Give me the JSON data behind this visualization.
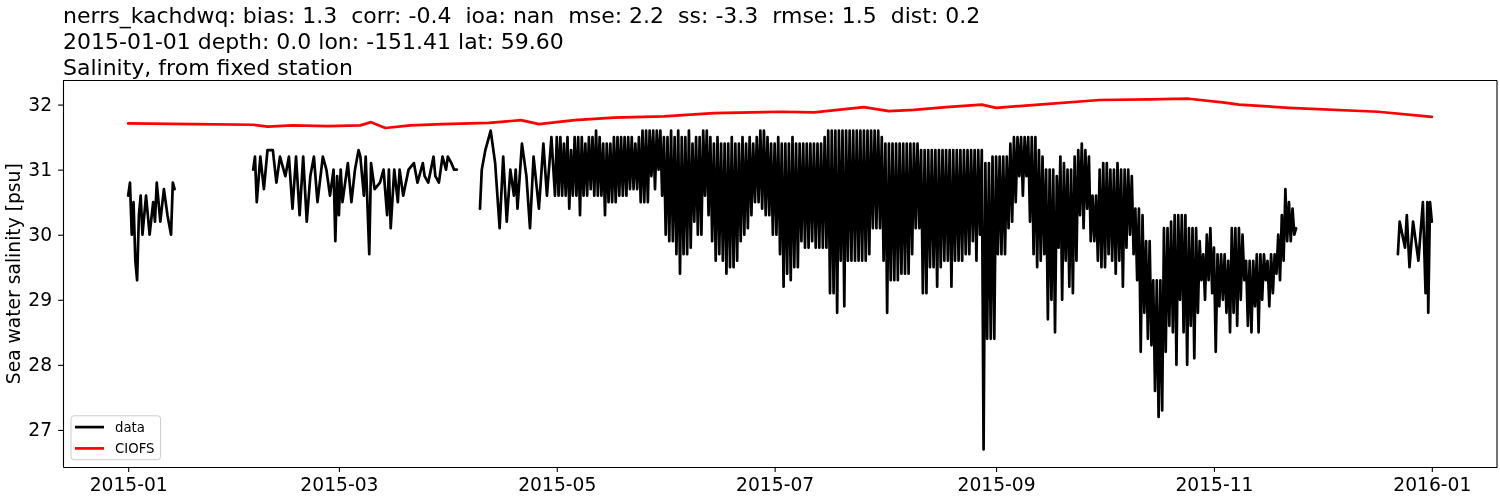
{
  "chart_data": {
    "type": "line",
    "title": "nerrs_kachdwq: bias: 1.3  corr: -0.4  ioa: nan  mse: 2.2  ss: -3.3  rmse: 1.5  dist: 0.2\n2015-01-01 depth: 0.0 lon: -151.41 lat: 59.60\nSalinity, from fixed station",
    "ylabel": "Sea water salinity [psu]",
    "xlim": [
      "2014-12-13T18:00",
      "2016-01-19T06:00"
    ],
    "xticks": [
      {
        "value": "2015-01-01",
        "label": "2015-01"
      },
      {
        "value": "2015-03-01",
        "label": "2015-03"
      },
      {
        "value": "2015-05-01",
        "label": "2015-05"
      },
      {
        "value": "2015-07-01",
        "label": "2015-07"
      },
      {
        "value": "2015-09-01",
        "label": "2015-09"
      },
      {
        "value": "2015-11-01",
        "label": "2015-11"
      },
      {
        "value": "2016-01-01",
        "label": "2016-01"
      }
    ],
    "ylim": [
      26.43,
      32.37
    ],
    "yticks": [
      27,
      28,
      29,
      30,
      31,
      32
    ],
    "legend": "bottom left",
    "series": [
      {
        "name": "data",
        "color": "#000000",
        "x": [
          "2015-01-01",
          "2015-01-01T12:00",
          "2015-01-02",
          "2015-01-02T12:00",
          "2015-01-03",
          "2015-01-03T12:00",
          "2015-01-04",
          "2015-01-04T12:00",
          "2015-01-05",
          "2015-01-06",
          "2015-01-07",
          "2015-01-08",
          "2015-01-08T12:00",
          "2015-01-09",
          "2015-01-10",
          "2015-01-11",
          "2015-01-12",
          "2015-01-13",
          "2015-01-13T12:00",
          "2015-01-14",
          "2015-01-25",
          "2015-02-05",
          "2015-02-05T12:00",
          "2015-02-06",
          "2015-02-07",
          "2015-02-08",
          "2015-02-09",
          "2015-02-10T12:00",
          "2015-02-11T12:00",
          "2015-02-12T12:00",
          "2015-02-14",
          "2015-02-15",
          "2015-02-16",
          "2015-02-17",
          "2015-02-18",
          "2015-02-19",
          "2015-02-20",
          "2015-02-21",
          "2015-02-22",
          "2015-02-23",
          "2015-02-24T12:00",
          "2015-02-25T12:00",
          "2015-02-26T12:00",
          "2015-02-27T12:00",
          "2015-02-28",
          "2015-02-28T12:00",
          "2015-03-01",
          "2015-03-01T12:00",
          "2015-03-02",
          "2015-03-03T12:00",
          "2015-03-04T12:00",
          "2015-03-05T12:00",
          "2015-03-06T12:00",
          "2015-03-07",
          "2015-03-08",
          "2015-03-08T12:00",
          "2015-03-09T12:00",
          "2015-03-10",
          "2015-03-11",
          "2015-03-12T12:00",
          "2015-03-13T12:00",
          "2015-03-14T12:00",
          "2015-03-15",
          "2015-03-15T12:00",
          "2015-03-16T12:00",
          "2015-03-17T12:00",
          "2015-03-18",
          "2015-03-19",
          "2015-03-20T12:00",
          "2015-03-22",
          "2015-03-23",
          "2015-03-24T12:00",
          "2015-03-25",
          "2015-03-26",
          "2015-03-27T12:00",
          "2015-03-28",
          "2015-03-29",
          "2015-03-30",
          "2015-03-31",
          "2015-03-31T12:00",
          "2015-04-01T12:00",
          "2015-04-02T06:00",
          "2015-04-03",
          "2015-04-06",
          "2015-04-09T12:00",
          "2015-04-10",
          "2015-04-11",
          "2015-04-12T12:00",
          "2015-04-13T18:00",
          "2015-04-15",
          "2015-04-16",
          "2015-04-17",
          "2015-04-18",
          "2015-04-19",
          "2015-04-19T12:00",
          "2015-04-20",
          "2015-04-21T06:00",
          "2015-04-22T12:00",
          "2015-04-23T12:00",
          "2015-04-24T12:00",
          "2015-04-26",
          "2015-04-27T06:00",
          "2015-04-28T06:00",
          "2015-04-29T12:00",
          "2015-04-30T12:00",
          "2015-05-01",
          "2015-05-01T12:00",
          "2015-05-02",
          "2015-05-02T12:00",
          "2015-05-03",
          "2015-05-03T12:00",
          "2015-05-04",
          "2015-05-04T12:00",
          "2015-05-05",
          "2015-05-05T12:00",
          "2015-05-06",
          "2015-05-06T12:00",
          "2015-05-07",
          "2015-05-07T12:00",
          "2015-05-08",
          "2015-05-08T12:00",
          "2015-05-09",
          "2015-05-09T12:00",
          "2015-05-10",
          "2015-05-10T12:00",
          "2015-05-11",
          "2015-05-11T12:00",
          "2015-05-12",
          "2015-05-12T12:00",
          "2015-05-13",
          "2015-05-13T12:00",
          "2015-05-14",
          "2015-05-14T12:00",
          "2015-05-15",
          "2015-05-15T12:00",
          "2015-05-16",
          "2015-05-16T12:00",
          "2015-05-17",
          "2015-05-17T12:00",
          "2015-05-18",
          "2015-05-18T12:00",
          "2015-05-19",
          "2015-05-19T12:00",
          "2015-05-20",
          "2015-05-20T12:00",
          "2015-05-21",
          "2015-05-21T12:00",
          "2015-05-22",
          "2015-05-22T12:00",
          "2015-05-23",
          "2015-05-23T12:00",
          "2015-05-24",
          "2015-05-24T12:00",
          "2015-05-25",
          "2015-05-25T12:00",
          "2015-05-26",
          "2015-05-26T12:00",
          "2015-05-27",
          "2015-05-27T12:00",
          "2015-05-28",
          "2015-05-28T12:00",
          "2015-05-29",
          "2015-05-29T12:00",
          "2015-05-30",
          "2015-05-30T12:00",
          "2015-05-31",
          "2015-05-31T12:00",
          "2015-06-01",
          "2015-06-01T12:00",
          "2015-06-02",
          "2015-06-02T12:00",
          "2015-06-03",
          "2015-06-03T12:00",
          "2015-06-04",
          "2015-06-04T12:00",
          "2015-06-05",
          "2015-06-05T12:00",
          "2015-06-06",
          "2015-06-06T12:00",
          "2015-06-07",
          "2015-06-07T12:00",
          "2015-06-08",
          "2015-06-08T12:00",
          "2015-06-09",
          "2015-06-09T12:00",
          "2015-06-10",
          "2015-06-10T12:00",
          "2015-06-11",
          "2015-06-11T12:00",
          "2015-06-12",
          "2015-06-12T12:00",
          "2015-06-13",
          "2015-06-13T12:00",
          "2015-06-14",
          "2015-06-14T12:00",
          "2015-06-15",
          "2015-06-15T12:00",
          "2015-06-16",
          "2015-06-16T12:00",
          "2015-06-17",
          "2015-06-17T12:00",
          "2015-06-18",
          "2015-06-18T12:00",
          "2015-06-19",
          "2015-06-19T12:00",
          "2015-06-20",
          "2015-06-20T12:00",
          "2015-06-21",
          "2015-06-21T12:00",
          "2015-06-22",
          "2015-06-22T12:00",
          "2015-06-23",
          "2015-06-23T12:00",
          "2015-06-24",
          "2015-06-24T12:00",
          "2015-06-25",
          "2015-06-25T12:00",
          "2015-06-26",
          "2015-06-26T12:00",
          "2015-06-27",
          "2015-06-27T12:00",
          "2015-06-28",
          "2015-06-28T12:00",
          "2015-06-29",
          "2015-06-29T12:00",
          "2015-06-30",
          "2015-06-30T12:00",
          "2015-07-01",
          "2015-07-01T12:00",
          "2015-07-02",
          "2015-07-02T12:00",
          "2015-07-03",
          "2015-07-03T12:00",
          "2015-07-04",
          "2015-07-04T12:00",
          "2015-07-05",
          "2015-07-05T12:00",
          "2015-07-06",
          "2015-07-06T12:00",
          "2015-07-07",
          "2015-07-07T12:00",
          "2015-07-08",
          "2015-07-08T12:00",
          "2015-07-09",
          "2015-07-09T12:00",
          "2015-07-10",
          "2015-07-10T12:00",
          "2015-07-11",
          "2015-07-11T12:00",
          "2015-07-12",
          "2015-07-12T12:00",
          "2015-07-13",
          "2015-07-13T12:00",
          "2015-07-14",
          "2015-07-14T12:00",
          "2015-07-15",
          "2015-07-15T12:00",
          "2015-07-16",
          "2015-07-16T12:00",
          "2015-07-17",
          "2015-07-17T12:00",
          "2015-07-18",
          "2015-07-18T12:00",
          "2015-07-19",
          "2015-07-19T12:00",
          "2015-07-20",
          "2015-07-20T12:00",
          "2015-07-21",
          "2015-07-21T12:00",
          "2015-07-22",
          "2015-07-22T12:00",
          "2015-07-23",
          "2015-07-23T12:00",
          "2015-07-24",
          "2015-07-24T12:00",
          "2015-07-25",
          "2015-07-25T12:00",
          "2015-07-26",
          "2015-07-26T12:00",
          "2015-07-27",
          "2015-07-27T12:00",
          "2015-07-28",
          "2015-07-28T12:00",
          "2015-07-29",
          "2015-07-29T12:00",
          "2015-07-30",
          "2015-07-30T12:00",
          "2015-07-31",
          "2015-07-31T12:00",
          "2015-08-01",
          "2015-08-01T12:00",
          "2015-08-02",
          "2015-08-02T12:00",
          "2015-08-03",
          "2015-08-03T12:00",
          "2015-08-04",
          "2015-08-04T12:00",
          "2015-08-05",
          "2015-08-05T12:00",
          "2015-08-06",
          "2015-08-06T12:00",
          "2015-08-07",
          "2015-08-07T12:00",
          "2015-08-08",
          "2015-08-08T12:00",
          "2015-08-09",
          "2015-08-09T12:00",
          "2015-08-10",
          "2015-08-10T12:00",
          "2015-08-11",
          "2015-08-11T12:00",
          "2015-08-12",
          "2015-08-12T12:00",
          "2015-08-13",
          "2015-08-13T12:00",
          "2015-08-14",
          "2015-08-14T12:00",
          "2015-08-15",
          "2015-08-15T12:00",
          "2015-08-16",
          "2015-08-16T12:00",
          "2015-08-17",
          "2015-08-17T12:00",
          "2015-08-18",
          "2015-08-18T12:00",
          "2015-08-19",
          "2015-08-19T12:00",
          "2015-08-20",
          "2015-08-20T12:00",
          "2015-08-21",
          "2015-08-21T12:00",
          "2015-08-22",
          "2015-08-22T12:00",
          "2015-08-23",
          "2015-08-23T12:00",
          "2015-08-24",
          "2015-08-24T12:00",
          "2015-08-25",
          "2015-08-25T12:00",
          "2015-08-26",
          "2015-08-26T12:00",
          "2015-08-27",
          "2015-08-27T12:00",
          "2015-08-28",
          "2015-08-28T12:00",
          "2015-08-29",
          "2015-08-29T12:00",
          "2015-08-30",
          "2015-08-30T12:00",
          "2015-08-31",
          "2015-08-31T12:00",
          "2015-09-01",
          "2015-09-01T12:00",
          "2015-09-02",
          "2015-09-02T12:00",
          "2015-09-03",
          "2015-09-03T12:00",
          "2015-09-04",
          "2015-09-04T12:00",
          "2015-09-05",
          "2015-09-05T12:00",
          "2015-09-06",
          "2015-09-06T12:00",
          "2015-09-07",
          "2015-09-07T12:00",
          "2015-09-08",
          "2015-09-08T12:00",
          "2015-09-09",
          "2015-09-09T12:00",
          "2015-09-10",
          "2015-09-10T12:00",
          "2015-09-11",
          "2015-09-11T12:00",
          "2015-09-12",
          "2015-09-12T12:00",
          "2015-09-13",
          "2015-09-13T12:00",
          "2015-09-14",
          "2015-09-14T12:00",
          "2015-09-15",
          "2015-09-15T12:00",
          "2015-09-16",
          "2015-09-16T12:00",
          "2015-09-17",
          "2015-09-17T12:00",
          "2015-09-18",
          "2015-09-18T12:00",
          "2015-09-19",
          "2015-09-19T12:00",
          "2015-09-20",
          "2015-09-20T12:00",
          "2015-09-21",
          "2015-09-21T12:00",
          "2015-09-22",
          "2015-09-22T12:00",
          "2015-09-23",
          "2015-09-23T12:00",
          "2015-09-24",
          "2015-09-24T12:00",
          "2015-09-25",
          "2015-09-25T12:00",
          "2015-09-26",
          "2015-09-26T12:00",
          "2015-09-27",
          "2015-09-27T12:00",
          "2015-09-28",
          "2015-09-28T12:00",
          "2015-09-29",
          "2015-09-29T12:00",
          "2015-09-30",
          "2015-09-30T12:00",
          "2015-10-01",
          "2015-10-01T12:00",
          "2015-10-02",
          "2015-10-02T12:00",
          "2015-10-03",
          "2015-10-03T12:00",
          "2015-10-04",
          "2015-10-04T12:00",
          "2015-10-05",
          "2015-10-05T12:00",
          "2015-10-06",
          "2015-10-06T12:00",
          "2015-10-07",
          "2015-10-07T12:00",
          "2015-10-08",
          "2015-10-08T12:00",
          "2015-10-09",
          "2015-10-09T12:00",
          "2015-10-10",
          "2015-10-10T12:00",
          "2015-10-11",
          "2015-10-11T12:00",
          "2015-10-12",
          "2015-10-12T12:00",
          "2015-10-13",
          "2015-10-13T12:00",
          "2015-10-14",
          "2015-10-14T12:00",
          "2015-10-15",
          "2015-10-15T12:00",
          "2015-10-16",
          "2015-10-16T12:00",
          "2015-10-17",
          "2015-10-17T12:00",
          "2015-10-18",
          "2015-10-18T12:00",
          "2015-10-19",
          "2015-10-19T12:00",
          "2015-10-20",
          "2015-10-20T12:00",
          "2015-10-21",
          "2015-10-21T12:00",
          "2015-10-22",
          "2015-10-22T12:00",
          "2015-10-23",
          "2015-10-23T12:00",
          "2015-10-24",
          "2015-10-24T12:00",
          "2015-10-25",
          "2015-10-25T12:00",
          "2015-10-26",
          "2015-10-26T12:00",
          "2015-10-27",
          "2015-10-27T12:00",
          "2015-10-28",
          "2015-10-28T12:00",
          "2015-10-29",
          "2015-10-29T12:00",
          "2015-10-30",
          "2015-10-30T12:00",
          "2015-10-31",
          "2015-10-31T12:00",
          "2015-11-01",
          "2015-11-01T12:00",
          "2015-11-02",
          "2015-11-02T12:00",
          "2015-11-03",
          "2015-11-03T12:00",
          "2015-11-04",
          "2015-11-04T12:00",
          "2015-11-05",
          "2015-11-05T12:00",
          "2015-11-06",
          "2015-11-06T12:00",
          "2015-11-07",
          "2015-11-07T12:00",
          "2015-11-08",
          "2015-11-08T12:00",
          "2015-11-09",
          "2015-11-09T12:00",
          "2015-11-10",
          "2015-11-10T12:00",
          "2015-11-11",
          "2015-11-11T12:00",
          "2015-11-12",
          "2015-11-12T12:00",
          "2015-11-13",
          "2015-11-13T12:00",
          "2015-11-14",
          "2015-11-14T12:00",
          "2015-11-15",
          "2015-11-15T12:00",
          "2015-11-16",
          "2015-11-16T12:00",
          "2015-11-17",
          "2015-11-17T12:00",
          "2015-11-18",
          "2015-11-18T12:00",
          "2015-11-19",
          "2015-11-19T12:00",
          "2015-11-20",
          "2015-11-20T12:00",
          "2015-11-21",
          "2015-11-21T12:00",
          "2015-11-22",
          "2015-11-22T12:00",
          "2015-11-23",
          "2015-11-23T12:00",
          "2015-11-24",
          "2015-12-08",
          "2015-12-22T12:00",
          "2015-12-23",
          "2015-12-24T12:00",
          "2015-12-25",
          "2015-12-25T18:00",
          "2015-12-26T18:00",
          "2015-12-28T06:00",
          "2015-12-29T12:00",
          "2015-12-30T06:00",
          "2015-12-30T18:00",
          "2015-12-31",
          "2015-12-31T12:00",
          "2016-01-01"
        ],
        "values": [
          30.6,
          30.8,
          30.0,
          30.5,
          29.6,
          29.3,
          30.3,
          30.6,
          30.0,
          30.6,
          30.0,
          30.5,
          30.2,
          30.8,
          30.2,
          30.7,
          30.3,
          30.0,
          30.8,
          30.7,
          null,
          31.0,
          31.2,
          30.5,
          31.2,
          30.7,
          31.3,
          31.3,
          30.8,
          31.2,
          30.9,
          31.2,
          30.4,
          31.2,
          30.3,
          31.2,
          30.2,
          30.9,
          31.2,
          30.5,
          31.2,
          31.0,
          30.6,
          31.0,
          29.9,
          30.9,
          30.3,
          31.0,
          30.5,
          31.1,
          30.5,
          31.0,
          31.3,
          31.2,
          30.6,
          31.2,
          29.7,
          31.1,
          30.7,
          30.8,
          31.0,
          30.3,
          31.0,
          30.1,
          31.0,
          30.5,
          31.0,
          30.6,
          31.0,
          31.1,
          30.8,
          31.1,
          30.9,
          30.8,
          31.2,
          30.9,
          30.8,
          31.2,
          31.0,
          31.2,
          31.1,
          31.0,
          31.0,
          null,
          30.4,
          31.0,
          31.3,
          31.6,
          31.1,
          30.1,
          31.2,
          30.2,
          31.0,
          30.6,
          31.0,
          30.4,
          31.4,
          30.9,
          30.1,
          31.2,
          30.4,
          31.4,
          30.6,
          31.5,
          30.6,
          31.5,
          30.6,
          31.5,
          30.6,
          31.4,
          30.6,
          31.5,
          30.4,
          31.3,
          30.6,
          31.5,
          30.6,
          31.5,
          30.3,
          31.5,
          30.6,
          31.4,
          30.6,
          31.5,
          30.7,
          31.5,
          30.6,
          31.6,
          30.6,
          31.5,
          30.6,
          31.4,
          30.3,
          31.4,
          30.5,
          31.4,
          30.5,
          31.5,
          30.5,
          31.5,
          30.6,
          31.5,
          30.6,
          31.5,
          30.6,
          31.5,
          30.7,
          31.5,
          30.7,
          31.4,
          30.7,
          31.5,
          30.5,
          31.6,
          30.5,
          31.6,
          30.5,
          31.6,
          30.9,
          31.6,
          30.7,
          31.6,
          31.0,
          31.6,
          30.6,
          31.5,
          30.0,
          31.5,
          29.9,
          31.6,
          29.9,
          31.5,
          29.7,
          31.6,
          29.4,
          31.5,
          29.7,
          31.5,
          29.7,
          31.6,
          29.8,
          31.4,
          30.2,
          31.5,
          30.0,
          31.5,
          30.0,
          31.6,
          30.6,
          31.6,
          30.3,
          31.5,
          29.9,
          31.4,
          29.6,
          31.5,
          29.7,
          31.4,
          29.6,
          31.4,
          29.4,
          31.4,
          29.5,
          31.5,
          29.5,
          31.4,
          29.6,
          31.4,
          29.9,
          31.5,
          30.0,
          31.4,
          30.1,
          31.5,
          30.3,
          31.4,
          30.5,
          31.5,
          30.5,
          31.6,
          30.4,
          31.6,
          30.3,
          31.5,
          30.3,
          31.4,
          30.0,
          31.4,
          30.0,
          31.5,
          29.7,
          31.4,
          29.2,
          31.4,
          29.4,
          31.4,
          29.3,
          31.5,
          29.5,
          31.4,
          29.5,
          31.4,
          29.9,
          31.4,
          29.8,
          31.4,
          29.8,
          31.4,
          29.9,
          31.4,
          29.8,
          31.4,
          29.8,
          31.4,
          29.8,
          31.5,
          29.8,
          31.6,
          29.1,
          31.6,
          29.1,
          31.6,
          28.8,
          31.6,
          29.6,
          31.6,
          28.9,
          31.6,
          29.6,
          31.6,
          29.6,
          31.6,
          29.6,
          31.6,
          29.6,
          31.6,
          29.6,
          31.6,
          29.6,
          31.6,
          29.7,
          31.6,
          30.1,
          31.6,
          30.1,
          31.6,
          30.1,
          31.5,
          29.6,
          31.4,
          28.8,
          31.4,
          29.3,
          31.4,
          29.3,
          31.4,
          29.3,
          31.4,
          29.4,
          31.4,
          29.4,
          31.4,
          29.4,
          31.4,
          29.7,
          31.4,
          30.1,
          31.4,
          30.1,
          31.3,
          29.1,
          31.3,
          29.1,
          31.3,
          29.5,
          31.3,
          29.5,
          31.3,
          29.2,
          31.3,
          29.5,
          31.3,
          29.6,
          31.3,
          29.6,
          31.3,
          29.2,
          31.3,
          29.6,
          31.3,
          29.6,
          31.3,
          29.6,
          31.3,
          29.7,
          31.3,
          29.7,
          31.3,
          29.9,
          31.3,
          29.6,
          31.3,
          30.0,
          31.3,
          26.7,
          31.1,
          28.4,
          31.1,
          28.4,
          31.2,
          28.4,
          31.2,
          29.7,
          31.2,
          29.7,
          31.2,
          29.7,
          31.2,
          30.1,
          31.4,
          30.2,
          31.5,
          30.5,
          31.5,
          30.9,
          31.5,
          30.6,
          31.5,
          30.9,
          31.5,
          30.2,
          31.5,
          29.7,
          31.5,
          29.5,
          31.3,
          29.6,
          31.2,
          29.7,
          31.0,
          28.7,
          31.0,
          29.0,
          31.0,
          28.5,
          30.9,
          29.8,
          31.2,
          29.0,
          31.1,
          29.6,
          31.0,
          29.2,
          31.0,
          29.1,
          31.2,
          29.6,
          31.3,
          30.3,
          31.4,
          30.1,
          31.3,
          30.4,
          31.2,
          29.9,
          30.6,
          29.9,
          30.6,
          29.6,
          31.0,
          29.5,
          31.1,
          29.5,
          31.1,
          29.7,
          31.0,
          29.6,
          31.0,
          29.4,
          31.1,
          29.6,
          31.0,
          29.2,
          31.0,
          29.8,
          31.0,
          30.0,
          30.9,
          29.7,
          30.4,
          29.3,
          30.4,
          28.2,
          30.3,
          28.8,
          29.9,
          28.4,
          29.9,
          28.3,
          29.3,
          27.6,
          29.3,
          27.2,
          29.3,
          27.3,
          30.1,
          28.2,
          30.1,
          28.6,
          30.2,
          28.5,
          30.3,
          28.0,
          30.3,
          29.0,
          30.3,
          28.5,
          30.3,
          28.0,
          30.1,
          28.6,
          30.1,
          28.1,
          30.1,
          28.8,
          29.9,
          29.3,
          29.7,
          29.0,
          30.0,
          29.3,
          30.1,
          29.1,
          29.8,
          28.2,
          29.7,
          28.9,
          29.7,
          29.0,
          29.7,
          28.8,
          29.6,
          28.5,
          30.1,
          28.8,
          30.1,
          28.6,
          30.1,
          29.0,
          30.0,
          29.3,
          29.6,
          28.6,
          29.6,
          28.5,
          29.6,
          28.9,
          29.7,
          28.5,
          29.7,
          29.0,
          29.7,
          29.3,
          29.6,
          28.9,
          29.7,
          29.1,
          29.7,
          29.4,
          30.0,
          29.3,
          30.3,
          29.6,
          30.7,
          29.9,
          30.5,
          29.9,
          30.4,
          30.0,
          30.1,
          null,
          29.7,
          30.2,
          29.8,
          30.3,
          29.5,
          30.2,
          29.6,
          30.5,
          29.1,
          30.5,
          28.8,
          30.5,
          30.2
        ]
      },
      {
        "name": "CIOFS",
        "color": "#ff0000",
        "x": [
          "2015-01-01",
          "2015-01-19",
          "2015-02-05",
          "2015-02-09",
          "2015-02-16",
          "2015-02-26",
          "2015-03-07",
          "2015-03-10",
          "2015-03-14",
          "2015-03-21",
          "2015-03-30",
          "2015-04-12",
          "2015-04-21",
          "2015-04-26",
          "2015-05-06",
          "2015-05-17",
          "2015-05-31",
          "2015-06-14",
          "2015-07-03",
          "2015-07-12",
          "2015-07-26",
          "2015-08-02",
          "2015-08-09",
          "2015-08-18",
          "2015-08-28",
          "2015-09-01",
          "2015-09-13",
          "2015-09-30",
          "2015-10-14",
          "2015-10-25",
          "2015-11-04",
          "2015-11-08",
          "2015-11-22",
          "2015-12-17",
          "2016-01-01"
        ],
        "values": [
          31.71,
          31.7,
          31.69,
          31.66,
          31.68,
          31.67,
          31.68,
          31.73,
          31.64,
          31.68,
          31.7,
          31.72,
          31.76,
          31.7,
          31.76,
          31.8,
          31.82,
          31.87,
          31.89,
          31.88,
          31.96,
          31.9,
          31.92,
          31.96,
          32.0,
          31.95,
          32.0,
          32.07,
          32.08,
          32.09,
          32.03,
          32.0,
          31.95,
          31.89,
          31.81
        ]
      }
    ]
  }
}
